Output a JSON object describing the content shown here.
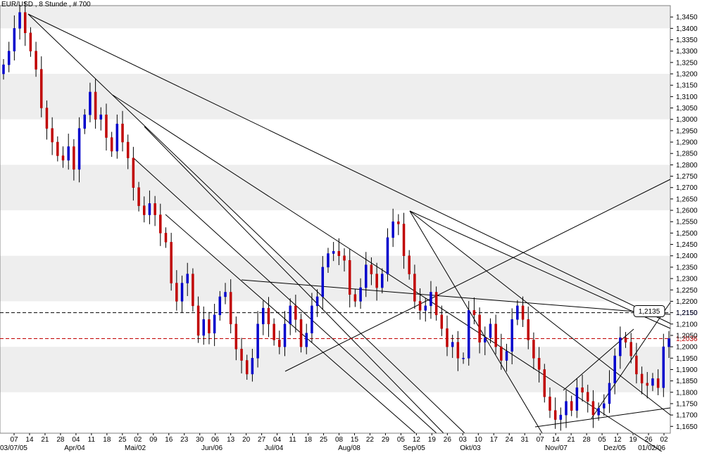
{
  "title": "EUR/USD , 8 Stunde , # 700",
  "chart_data": {
    "type": "candlestick",
    "title": "EUR/USD , 8 Stunde , # 700",
    "ylim": [
      1.162,
      1.35
    ],
    "y_ticks": [
      "1,3450",
      "1,3400",
      "1,3350",
      "1,3300",
      "1,3250",
      "1,3200",
      "1,3150",
      "1,3100",
      "1,3050",
      "1,3000",
      "1,2950",
      "1,2900",
      "1,2850",
      "1,2800",
      "1,2750",
      "1,2700",
      "1,2650",
      "1,2600",
      "1,2550",
      "1,2500",
      "1,2450",
      "1,2400",
      "1,2350",
      "1,2300",
      "1,2250",
      "1,2200",
      "1,2150",
      "1,2100",
      "1,2050",
      "1,2000",
      "1,1950",
      "1,1900",
      "1,1850",
      "1,1800",
      "1,1750",
      "1,1700",
      "1,1650"
    ],
    "y_tick_values": [
      1.345,
      1.34,
      1.335,
      1.33,
      1.325,
      1.32,
      1.315,
      1.31,
      1.305,
      1.3,
      1.295,
      1.29,
      1.285,
      1.28,
      1.275,
      1.27,
      1.265,
      1.26,
      1.255,
      1.25,
      1.245,
      1.24,
      1.235,
      1.23,
      1.225,
      1.22,
      1.215,
      1.21,
      1.205,
      1.2,
      1.195,
      1.19,
      1.185,
      1.18,
      1.175,
      1.17,
      1.165
    ],
    "x_day_labels": [
      "07",
      "14",
      "21",
      "28",
      "04",
      "11",
      "18",
      "25",
      "02",
      "09",
      "16",
      "23",
      "30",
      "06",
      "13",
      "20",
      "27",
      "04",
      "11",
      "18",
      "25",
      "08",
      "15",
      "22",
      "29",
      "05",
      "12",
      "19",
      "26",
      "03",
      "10",
      "17",
      "24",
      "31",
      "07",
      "14",
      "21",
      "28",
      "05",
      "12",
      "19",
      "26",
      "02"
    ],
    "x_month_labels": [
      "03/07/05",
      "Apr/04",
      "Mai/02",
      "Jun/06",
      "Jul/04",
      "Aug/08",
      "Sep/05",
      "Okt/03",
      "Nov/07",
      "Dez/05",
      "01/02/06"
    ],
    "grid": "alternating horizontal bands",
    "reference_lines": [
      {
        "label": "1,2150",
        "value": 1.215,
        "color": "#0000cc",
        "style": "dashed"
      },
      {
        "label": "1,2036",
        "value": 1.2036,
        "color": "#c00000",
        "style": "dashed"
      }
    ],
    "annotation": {
      "label": "1,2135",
      "value": 1.2135
    },
    "up_color": "#0000cc",
    "down_color": "#c00000",
    "closes": [
      1.324,
      1.33,
      1.34,
      1.347,
      1.338,
      1.33,
      1.322,
      1.305,
      1.296,
      1.29,
      1.284,
      1.282,
      1.288,
      1.278,
      1.296,
      1.302,
      1.312,
      1.3,
      1.302,
      1.292,
      1.286,
      1.298,
      1.29,
      1.283,
      1.27,
      1.262,
      1.258,
      1.263,
      1.258,
      1.25,
      1.246,
      1.228,
      1.22,
      1.228,
      1.232,
      1.218,
      1.205,
      1.212,
      1.206,
      1.214,
      1.222,
      1.224,
      1.21,
      1.199,
      1.194,
      1.188,
      1.195,
      1.21,
      1.217,
      1.21,
      1.203,
      1.2,
      1.21,
      1.218,
      1.212,
      1.2,
      1.206,
      1.218,
      1.222,
      1.235,
      1.241,
      1.242,
      1.24,
      1.238,
      1.223,
      1.22,
      1.226,
      1.236,
      1.232,
      1.226,
      1.232,
      1.248,
      1.255,
      1.254,
      1.24,
      1.232,
      1.22,
      1.216,
      1.218,
      1.224,
      1.214,
      1.208,
      1.2,
      1.202,
      1.195,
      1.195,
      1.216,
      1.214,
      1.202,
      1.204,
      1.21,
      1.2,
      1.194,
      1.198,
      1.212,
      1.218,
      1.212,
      1.203,
      1.195,
      1.19,
      1.178,
      1.172,
      1.168,
      1.17,
      1.176,
      1.172,
      1.182,
      1.18,
      1.176,
      1.17,
      1.173,
      1.175,
      1.184,
      1.196,
      1.204,
      1.202,
      1.196,
      1.188,
      1.184,
      1.183,
      1.186,
      1.182,
      1.2,
      1.2036
    ]
  }
}
